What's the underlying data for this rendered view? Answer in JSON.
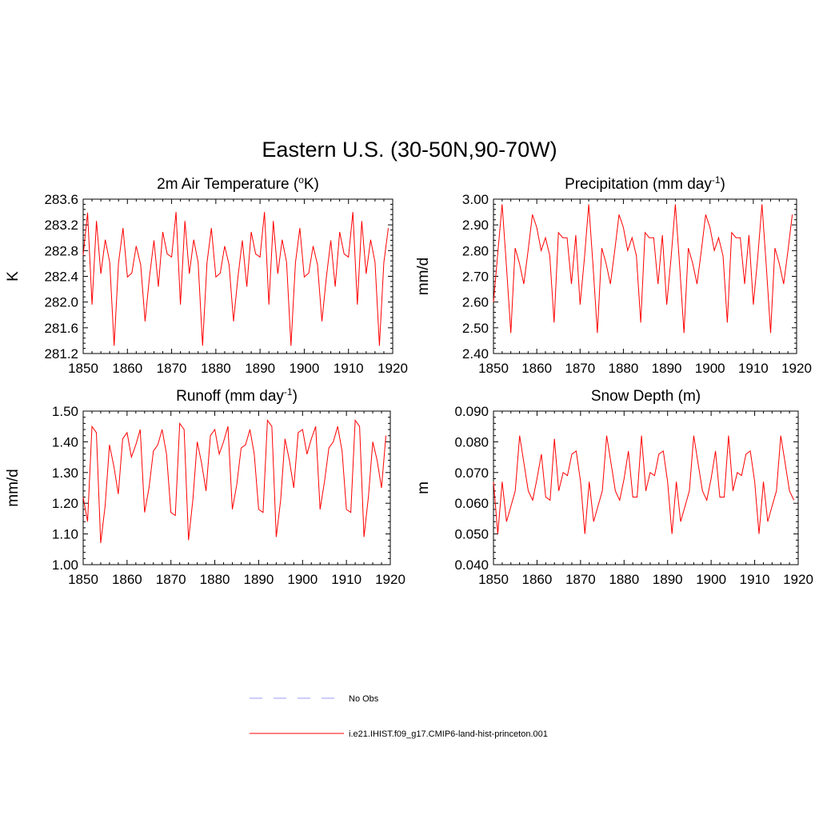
{
  "figure": {
    "title": "Eastern U.S. (30-50N,90-70W)"
  },
  "legend": {
    "items": [
      {
        "label": "No Obs",
        "color": "#9999ff",
        "style": "dashed"
      },
      {
        "label": "i.e21.IHIST.f09_g17.CMIP6-land-hist-princeton.001",
        "color": "#ff0000",
        "style": "solid"
      }
    ]
  },
  "chart_data": [
    {
      "type": "line",
      "title": "2m Air Temperature (oK)",
      "title_parts": {
        "pre": "2m Air Temperature (",
        "sup": "o",
        "post": "K)"
      },
      "xlabel": "",
      "ylabel": "K",
      "xlim": [
        1850,
        1920
      ],
      "ylim": [
        281.2,
        283.6
      ],
      "xticks": [
        1850,
        1860,
        1870,
        1880,
        1890,
        1900,
        1910,
        1920
      ],
      "yticks": [
        281.2,
        281.6,
        282.0,
        282.4,
        282.8,
        283.2,
        283.6
      ],
      "ytick_labels": [
        "281.2",
        "281.6",
        "282.0",
        "282.4",
        "282.8",
        "283.2",
        "283.6"
      ],
      "grid": false,
      "series": [
        {
          "name": "i.e21.IHIST.f09_g17.CMIP6-land-hist-princeton.001",
          "color": "#ff0000",
          "x": [
            1850,
            1851,
            1852,
            1853,
            1854,
            1855,
            1856,
            1857,
            1858,
            1859,
            1860,
            1861,
            1862,
            1863,
            1864,
            1865,
            1866,
            1867,
            1868,
            1869,
            1870,
            1871,
            1872,
            1873,
            1874,
            1875,
            1876,
            1877,
            1878,
            1879,
            1880,
            1881,
            1882,
            1883,
            1884,
            1885,
            1886,
            1887,
            1888,
            1889,
            1890,
            1891,
            1892,
            1893,
            1894,
            1895,
            1896,
            1897,
            1898,
            1899,
            1900,
            1901,
            1902,
            1903,
            1904,
            1905,
            1906,
            1907,
            1908,
            1909,
            1910,
            1911,
            1912,
            1913,
            1914,
            1915,
            1916,
            1917,
            1918,
            1919
          ],
          "values": [
            282.73,
            283.39,
            281.96,
            283.26,
            282.44,
            282.97,
            282.62,
            281.32,
            282.61,
            283.15,
            282.39,
            282.45,
            282.87,
            282.58,
            281.7,
            282.39,
            282.96,
            282.24,
            283.09,
            282.75,
            282.7,
            283.4,
            281.96,
            283.26,
            282.44,
            282.97,
            282.62,
            281.32,
            282.61,
            283.15,
            282.39,
            282.45,
            282.87,
            282.58,
            281.7,
            282.39,
            282.96,
            282.24,
            283.09,
            282.75,
            282.7,
            283.4,
            281.96,
            283.26,
            282.44,
            282.97,
            282.62,
            281.32,
            282.61,
            283.15,
            282.39,
            282.45,
            282.87,
            282.58,
            281.7,
            282.39,
            282.96,
            282.24,
            283.09,
            282.75,
            282.7,
            283.4,
            281.96,
            283.26,
            282.44,
            282.97,
            282.62,
            281.32,
            282.61,
            283.15
          ]
        }
      ]
    },
    {
      "type": "line",
      "title": "Precipitation (mm day-1)",
      "title_parts": {
        "pre": "Precipitation (mm day",
        "sup": "-1",
        "post": ")"
      },
      "xlabel": "",
      "ylabel": "mm/d",
      "xlim": [
        1850,
        1920
      ],
      "ylim": [
        2.4,
        3.0
      ],
      "xticks": [
        1850,
        1860,
        1870,
        1880,
        1890,
        1900,
        1910,
        1920
      ],
      "yticks": [
        2.4,
        2.5,
        2.6,
        2.7,
        2.8,
        2.9,
        3.0
      ],
      "ytick_labels": [
        "2.40",
        "2.50",
        "2.60",
        "2.70",
        "2.80",
        "2.90",
        "3.00"
      ],
      "grid": false,
      "series": [
        {
          "name": "i.e21.IHIST.f09_g17.CMIP6-land-hist-princeton.001",
          "color": "#ff0000",
          "x": [
            1850,
            1851,
            1852,
            1853,
            1854,
            1855,
            1856,
            1857,
            1858,
            1859,
            1860,
            1861,
            1862,
            1863,
            1864,
            1865,
            1866,
            1867,
            1868,
            1869,
            1870,
            1871,
            1872,
            1873,
            1874,
            1875,
            1876,
            1877,
            1878,
            1879,
            1880,
            1881,
            1882,
            1883,
            1884,
            1885,
            1886,
            1887,
            1888,
            1889,
            1890,
            1891,
            1892,
            1893,
            1894,
            1895,
            1896,
            1897,
            1898,
            1899,
            1900,
            1901,
            1902,
            1903,
            1904,
            1905,
            1906,
            1907,
            1908,
            1909,
            1910,
            1911,
            1912,
            1913,
            1914,
            1915,
            1916,
            1917,
            1918,
            1919
          ],
          "values": [
            2.6,
            2.79,
            2.98,
            2.74,
            2.48,
            2.81,
            2.75,
            2.67,
            2.8,
            2.94,
            2.89,
            2.8,
            2.85,
            2.78,
            2.52,
            2.87,
            2.85,
            2.85,
            2.67,
            2.86,
            2.59,
            2.77,
            2.98,
            2.74,
            2.48,
            2.81,
            2.75,
            2.67,
            2.8,
            2.94,
            2.89,
            2.8,
            2.85,
            2.78,
            2.52,
            2.87,
            2.85,
            2.85,
            2.67,
            2.86,
            2.59,
            2.77,
            2.98,
            2.74,
            2.48,
            2.81,
            2.75,
            2.67,
            2.8,
            2.94,
            2.89,
            2.8,
            2.85,
            2.78,
            2.52,
            2.87,
            2.85,
            2.85,
            2.67,
            2.86,
            2.59,
            2.77,
            2.98,
            2.74,
            2.48,
            2.81,
            2.75,
            2.67,
            2.8,
            2.94
          ]
        }
      ]
    },
    {
      "type": "line",
      "title": "Runoff (mm day-1)",
      "title_parts": {
        "pre": "Runoff (mm day",
        "sup": "-1",
        "post": ")"
      },
      "xlabel": "",
      "ylabel": "mm/d",
      "xlim": [
        1850,
        1920
      ],
      "ylim": [
        1.0,
        1.5
      ],
      "xticks": [
        1850,
        1860,
        1870,
        1880,
        1890,
        1900,
        1910,
        1920
      ],
      "yticks": [
        1.0,
        1.1,
        1.2,
        1.3,
        1.4,
        1.5
      ],
      "ytick_labels": [
        "1.00",
        "1.10",
        "1.20",
        "1.30",
        "1.40",
        "1.50"
      ],
      "grid": false,
      "series": [
        {
          "name": "i.e21.IHIST.f09_g17.CMIP6-land-hist-princeton.001",
          "color": "#ff0000",
          "x": [
            1850,
            1851,
            1852,
            1853,
            1854,
            1855,
            1856,
            1857,
            1858,
            1859,
            1860,
            1861,
            1862,
            1863,
            1864,
            1865,
            1866,
            1867,
            1868,
            1869,
            1870,
            1871,
            1872,
            1873,
            1874,
            1875,
            1876,
            1877,
            1878,
            1879,
            1880,
            1881,
            1882,
            1883,
            1884,
            1885,
            1886,
            1887,
            1888,
            1889,
            1890,
            1891,
            1892,
            1893,
            1894,
            1895,
            1896,
            1897,
            1898,
            1899,
            1900,
            1901,
            1902,
            1903,
            1904,
            1905,
            1906,
            1907,
            1908,
            1909,
            1910,
            1911,
            1912,
            1913,
            1914,
            1915,
            1916,
            1917,
            1918,
            1919
          ],
          "values": [
            1.22,
            1.14,
            1.45,
            1.43,
            1.07,
            1.19,
            1.39,
            1.32,
            1.23,
            1.41,
            1.43,
            1.35,
            1.39,
            1.44,
            1.17,
            1.25,
            1.37,
            1.39,
            1.44,
            1.36,
            1.17,
            1.16,
            1.46,
            1.44,
            1.08,
            1.21,
            1.4,
            1.33,
            1.24,
            1.42,
            1.44,
            1.36,
            1.4,
            1.45,
            1.18,
            1.26,
            1.38,
            1.39,
            1.44,
            1.36,
            1.18,
            1.17,
            1.47,
            1.45,
            1.09,
            1.21,
            1.41,
            1.34,
            1.25,
            1.43,
            1.44,
            1.36,
            1.41,
            1.45,
            1.18,
            1.27,
            1.38,
            1.4,
            1.45,
            1.37,
            1.18,
            1.17,
            1.47,
            1.45,
            1.09,
            1.22,
            1.4,
            1.34,
            1.25,
            1.42
          ]
        }
      ]
    },
    {
      "type": "line",
      "title": "Snow Depth (m)",
      "title_parts": {
        "pre": "Snow Depth (m)",
        "sup": "",
        "post": ""
      },
      "xlabel": "",
      "ylabel": "m",
      "xlim": [
        1850,
        1920
      ],
      "ylim": [
        0.04,
        0.09
      ],
      "xticks": [
        1850,
        1860,
        1870,
        1880,
        1890,
        1900,
        1910,
        1920
      ],
      "yticks": [
        0.04,
        0.05,
        0.06,
        0.07,
        0.08,
        0.09
      ],
      "ytick_labels": [
        "0.040",
        "0.050",
        "0.060",
        "0.070",
        "0.080",
        "0.090"
      ],
      "grid": false,
      "series": [
        {
          "name": "i.e21.IHIST.f09_g17.CMIP6-land-hist-princeton.001",
          "color": "#ff0000",
          "x": [
            1850,
            1851,
            1852,
            1853,
            1854,
            1855,
            1856,
            1857,
            1858,
            1859,
            1860,
            1861,
            1862,
            1863,
            1864,
            1865,
            1866,
            1867,
            1868,
            1869,
            1870,
            1871,
            1872,
            1873,
            1874,
            1875,
            1876,
            1877,
            1878,
            1879,
            1880,
            1881,
            1882,
            1883,
            1884,
            1885,
            1886,
            1887,
            1888,
            1889,
            1890,
            1891,
            1892,
            1893,
            1894,
            1895,
            1896,
            1897,
            1898,
            1899,
            1900,
            1901,
            1902,
            1903,
            1904,
            1905,
            1906,
            1907,
            1908,
            1909,
            1910,
            1911,
            1912,
            1913,
            1914,
            1915,
            1916,
            1917,
            1918,
            1919
          ],
          "values": [
            0.067,
            0.05,
            0.067,
            0.054,
            0.059,
            0.064,
            0.082,
            0.073,
            0.064,
            0.061,
            0.068,
            0.076,
            0.062,
            0.061,
            0.081,
            0.064,
            0.07,
            0.069,
            0.076,
            0.077,
            0.067,
            0.05,
            0.067,
            0.054,
            0.059,
            0.064,
            0.082,
            0.073,
            0.064,
            0.061,
            0.068,
            0.077,
            0.062,
            0.062,
            0.082,
            0.064,
            0.07,
            0.069,
            0.076,
            0.077,
            0.067,
            0.05,
            0.067,
            0.054,
            0.059,
            0.064,
            0.082,
            0.073,
            0.064,
            0.061,
            0.068,
            0.077,
            0.062,
            0.062,
            0.082,
            0.064,
            0.07,
            0.069,
            0.076,
            0.077,
            0.067,
            0.05,
            0.067,
            0.054,
            0.059,
            0.064,
            0.082,
            0.073,
            0.064,
            0.061
          ]
        }
      ]
    }
  ]
}
